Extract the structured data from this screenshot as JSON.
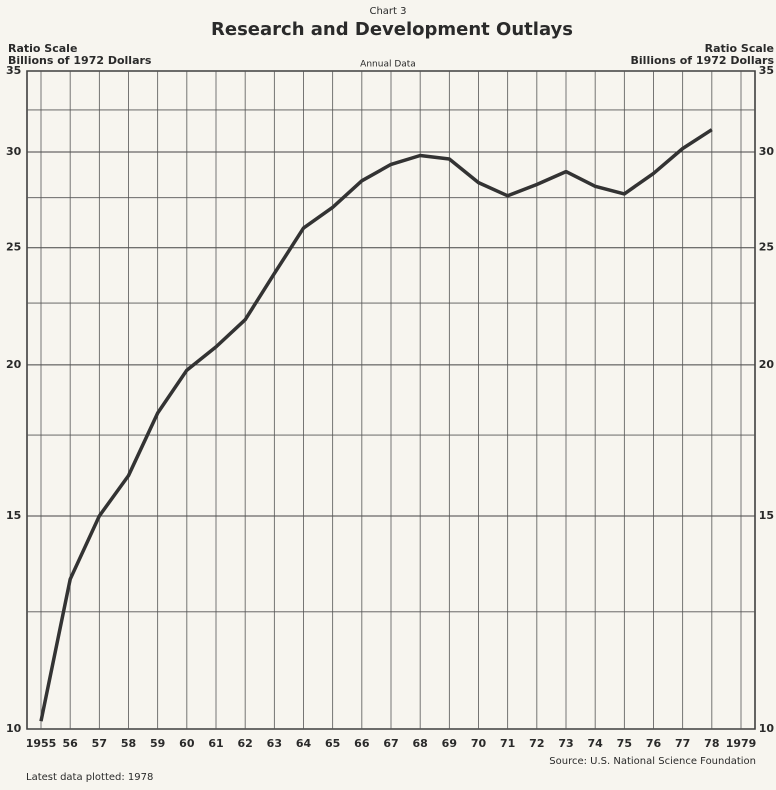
{
  "chart_data": {
    "type": "line",
    "overline": "Chart 3",
    "title": "Research and Development Outlays",
    "subtitle": "Annual Data",
    "y_axis_note": "Ratio Scale",
    "y_axis_label": "Billions of 1972 Dollars",
    "y2_axis_note": "Ratio Scale",
    "y2_axis_label": "Billions of 1972 Dollars",
    "source": "Source: U.S. National Science Foundation",
    "footnote": "Latest data plotted: 1978",
    "categories": [
      "1955",
      "56",
      "57",
      "58",
      "59",
      "60",
      "61",
      "62",
      "63",
      "64",
      "65",
      "66",
      "67",
      "68",
      "69",
      "70",
      "71",
      "72",
      "73",
      "74",
      "75",
      "76",
      "77",
      "78",
      "1979"
    ],
    "series": [
      {
        "name": "R&D Outlays",
        "color": "#333333",
        "values": [
          10.15,
          13.3,
          15.0,
          16.2,
          18.25,
          19.8,
          20.7,
          21.8,
          23.8,
          25.95,
          27.0,
          28.4,
          29.3,
          29.8,
          29.6,
          28.3,
          27.6,
          28.2,
          28.9,
          28.1,
          27.7,
          28.8,
          30.2,
          31.3,
          null
        ]
      }
    ],
    "ylim": [
      10,
      35
    ],
    "yticks": [
      10,
      15,
      20,
      25,
      30,
      35
    ],
    "yticks_minor": [
      12.5,
      17.5,
      22.5,
      27.5,
      32.5
    ],
    "log_scale": true,
    "grid": true
  }
}
